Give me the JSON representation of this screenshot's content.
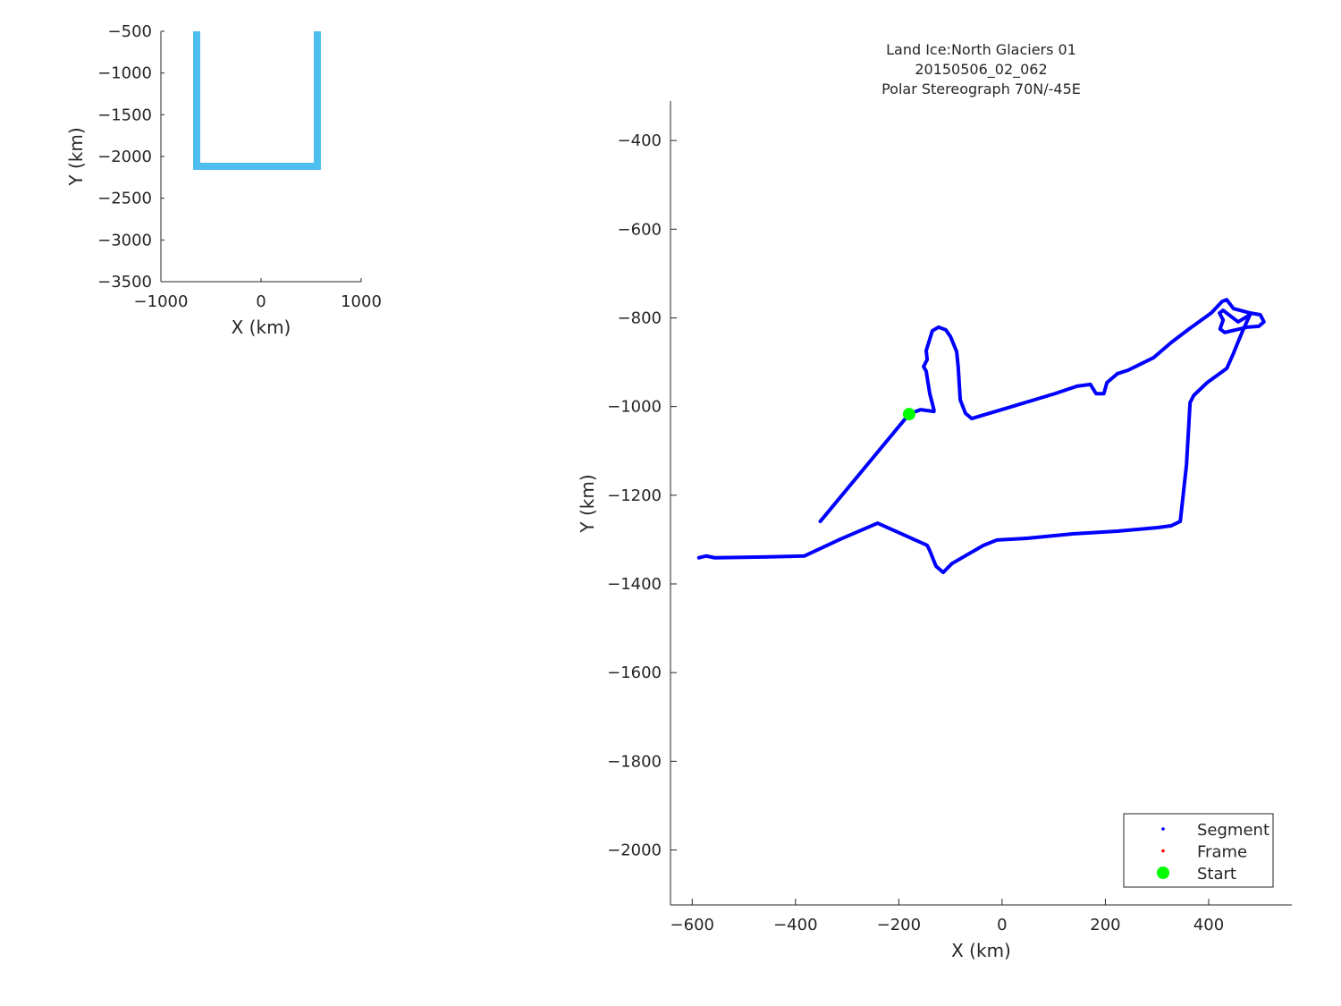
{
  "chart_data": [
    {
      "id": "inset",
      "type": "line",
      "xlabel": "X (km)",
      "ylabel": "Y (km)",
      "xlim": [
        -1000,
        1000
      ],
      "ylim": [
        -3500,
        -500
      ],
      "xticks": [
        -1000,
        0,
        1000
      ],
      "xtick_labels": [
        "−1000",
        "0",
        "1000"
      ],
      "yticks": [
        -3500,
        -3000,
        -2500,
        -2000,
        -1500,
        -1000,
        -500
      ],
      "ytick_labels": [
        "−3500",
        "−3000",
        "−2500",
        "−2000",
        "−1500",
        "−1000",
        "−500"
      ],
      "grid": false,
      "series": [
        {
          "color": "#4DBEEE",
          "x": [
            -643,
            -643,
            562,
            562
          ],
          "y": [
            -450,
            -2118,
            -2118,
            -450
          ]
        }
      ]
    },
    {
      "id": "main",
      "type": "line",
      "title": [
        "Land Ice:North Glaciers 01",
        "20150506_02_062",
        "Polar Stereograph 70N/-45E"
      ],
      "xlabel": "X (km)",
      "ylabel": "Y (km)",
      "xlim": [
        -642,
        561
      ],
      "ylim": [
        -2124,
        -311
      ],
      "xticks": [
        -600,
        -400,
        -200,
        0,
        200,
        400
      ],
      "xtick_labels": [
        "−600",
        "−400",
        "−200",
        "0",
        "200",
        "400"
      ],
      "yticks": [
        -2000,
        -1800,
        -1600,
        -1400,
        -1200,
        -1000,
        -800,
        -600,
        -400
      ],
      "ytick_labels": [
        "−2000",
        "−1800",
        "−1600",
        "−1400",
        "−1200",
        "−1000",
        "−800",
        "−600",
        "−400"
      ],
      "grid": false,
      "legend_placement": "bottom-right",
      "legend": [
        {
          "label": "Segment",
          "color": "#0000FF",
          "marker": "dot"
        },
        {
          "label": "Frame",
          "color": "#FF0000",
          "marker": "dot"
        },
        {
          "label": "Start",
          "color": "#00FF00",
          "marker": "star"
        }
      ],
      "tracks": [
        {
          "color": "#0000FF",
          "points": [
            [
              -180,
              -1017
            ],
            [
              -158,
              -1007
            ],
            [
              -132,
              -1011
            ],
            [
              -132,
              -1007
            ],
            [
              -140,
              -971
            ],
            [
              -147,
              -920
            ],
            [
              -152,
              -910
            ],
            [
              -145,
              -894
            ],
            [
              -147,
              -874
            ],
            [
              -135,
              -829
            ],
            [
              -123,
              -821
            ],
            [
              -109,
              -827
            ],
            [
              -100,
              -842
            ],
            [
              -88,
              -876
            ],
            [
              -85,
              -910
            ],
            [
              -81,
              -985
            ],
            [
              -71,
              -1015
            ],
            [
              -59,
              -1027
            ],
            [
              16,
              -1001
            ],
            [
              102,
              -971
            ],
            [
              145,
              -954
            ],
            [
              171,
              -950
            ],
            [
              182,
              -971
            ],
            [
              197,
              -971
            ],
            [
              203,
              -946
            ],
            [
              223,
              -926
            ],
            [
              244,
              -918
            ],
            [
              293,
              -890
            ],
            [
              327,
              -856
            ],
            [
              362,
              -825
            ],
            [
              405,
              -789
            ],
            [
              426,
              -763
            ],
            [
              435,
              -759
            ],
            [
              448,
              -779
            ],
            [
              480,
              -789
            ],
            [
              500,
              -793
            ],
            [
              507,
              -809
            ],
            [
              497,
              -819
            ],
            [
              474,
              -821
            ],
            [
              431,
              -833
            ],
            [
              422,
              -825
            ],
            [
              428,
              -805
            ],
            [
              421,
              -789
            ],
            [
              428,
              -783
            ],
            [
              457,
              -809
            ],
            [
              480,
              -793
            ],
            [
              466,
              -829
            ],
            [
              457,
              -854
            ],
            [
              448,
              -880
            ],
            [
              435,
              -914
            ],
            [
              397,
              -946
            ],
            [
              371,
              -975
            ],
            [
              364,
              -991
            ],
            [
              357,
              -1132
            ],
            [
              345,
              -1259
            ],
            [
              327,
              -1269
            ],
            [
              301,
              -1273
            ],
            [
              223,
              -1281
            ],
            [
              137,
              -1287
            ],
            [
              50,
              -1297
            ],
            [
              -10,
              -1301
            ],
            [
              -36,
              -1313
            ],
            [
              -97,
              -1354
            ],
            [
              -114,
              -1374
            ],
            [
              -128,
              -1360
            ],
            [
              -140,
              -1325
            ],
            [
              -145,
              -1313
            ],
            [
              -241,
              -1263
            ],
            [
              -313,
              -1299
            ],
            [
              -383,
              -1337
            ],
            [
              -452,
              -1339
            ],
            [
              -556,
              -1341
            ],
            [
              -573,
              -1337
            ],
            [
              -587,
              -1341
            ]
          ]
        },
        {
          "color": "#0000FF",
          "points": [
            [
              -180,
              -1017
            ],
            [
              -352,
              -1259
            ]
          ]
        }
      ],
      "start": {
        "x": -180,
        "y": -1017,
        "color": "#00FF00"
      }
    }
  ]
}
